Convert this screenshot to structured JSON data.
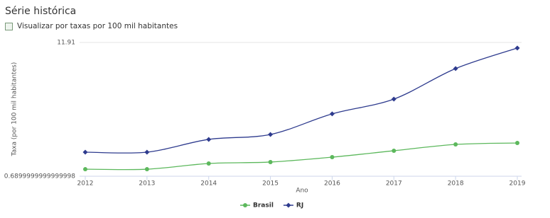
{
  "controls": {
    "checkbox_label": "Visualizar por taxas por 100 mil habitantes"
  },
  "chart_data": {
    "type": "line",
    "title": "Série histórica",
    "x_label": "Ano",
    "y_label": "Taxa (por 100 mil habitantes)",
    "x": [
      2012,
      2013,
      2014,
      2015,
      2016,
      2017,
      2018,
      2019
    ],
    "xlim": [
      2012,
      2019
    ],
    "xticks": [
      2012,
      2013,
      2014,
      2015,
      2016,
      2017,
      2018,
      2019
    ],
    "ylim": [
      0.6899999999999998,
      11.91
    ],
    "yticks": [
      0.6899999999999998,
      11.91
    ],
    "grid": true,
    "series": [
      {
        "name": "Brasil",
        "color": "#5cb85c",
        "marker": "circle",
        "values": [
          1.28,
          1.28,
          1.76,
          1.88,
          2.29,
          2.83,
          3.36,
          3.48
        ]
      },
      {
        "name": "RJ",
        "color": "#2e3b8e",
        "marker": "diamond",
        "values": [
          2.71,
          2.71,
          3.78,
          4.19,
          5.92,
          7.16,
          9.72,
          11.44
        ]
      }
    ]
  }
}
